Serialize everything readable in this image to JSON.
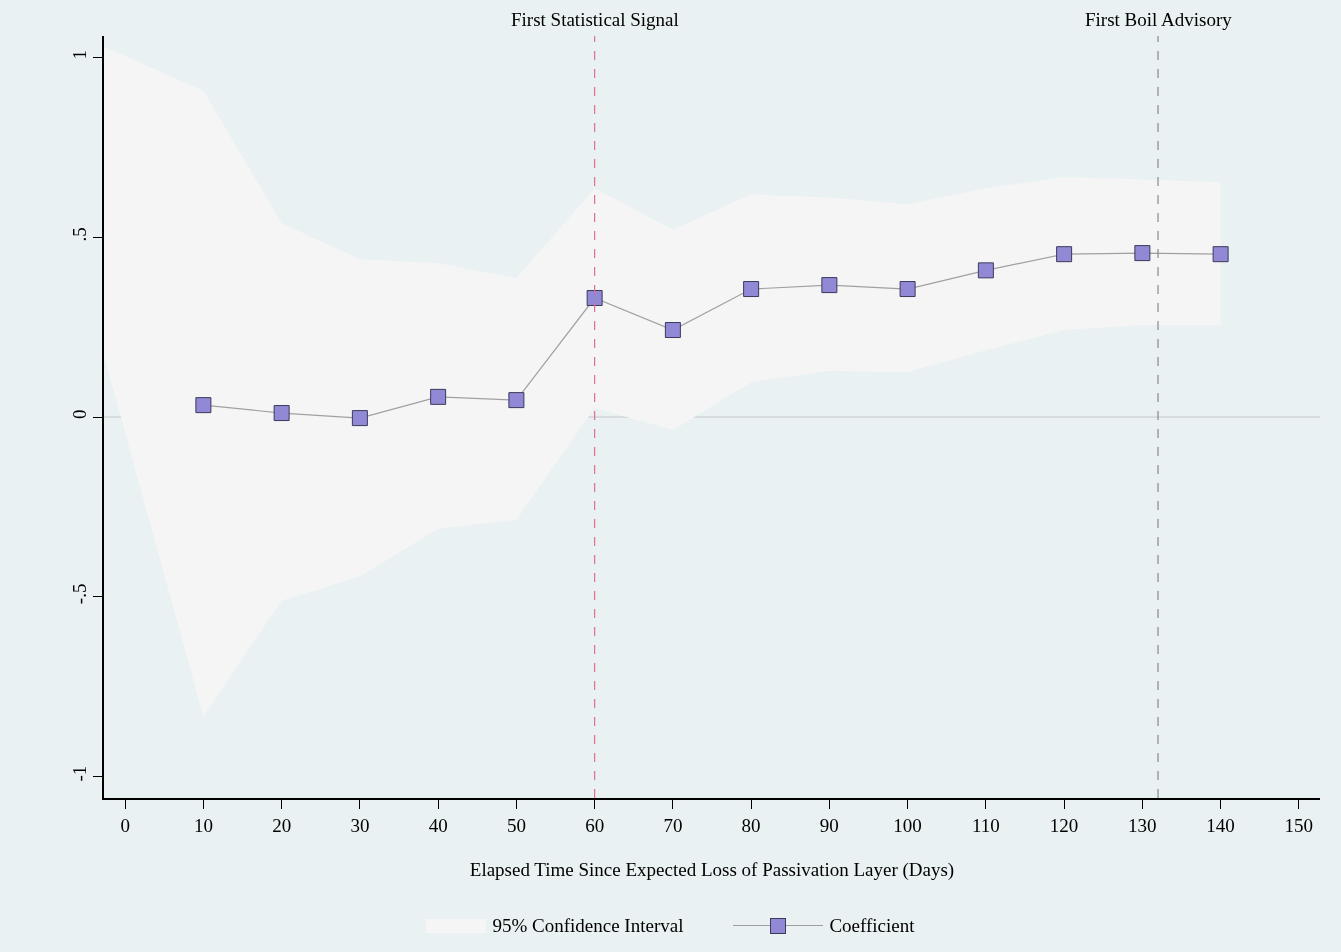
{
  "chart_data": {
    "type": "line",
    "xlabel": "Elapsed Time Since Expected Loss of Passivation Layer (Days)",
    "xlim": [
      -2.7,
      152.7
    ],
    "xticks": [
      0,
      10,
      20,
      30,
      40,
      50,
      60,
      70,
      80,
      90,
      100,
      110,
      120,
      130,
      140,
      150
    ],
    "ylim": [
      -1.06,
      1.06
    ],
    "yticks": [
      {
        "value": -1,
        "label": "-1"
      },
      {
        "value": -0.5,
        "label": "-.5"
      },
      0,
      {
        "value": 0.5,
        "label": ".5"
      },
      1
    ],
    "series": [
      {
        "name": "95% Confidence Interval",
        "type": "area",
        "color": "#f5f5f5",
        "x": [
          -2.7,
          10,
          20,
          30,
          40,
          50,
          60,
          70,
          80,
          90,
          100,
          110,
          120,
          130,
          140
        ],
        "values": [
          null,
          null,
          null,
          null,
          null,
          null,
          null,
          null,
          null,
          null,
          null,
          null,
          null,
          null,
          null
        ],
        "lower": [
          0.17,
          -0.833,
          -0.511,
          -0.444,
          -0.311,
          -0.286,
          0.025,
          -0.036,
          0.097,
          0.128,
          0.125,
          0.186,
          0.242,
          0.256,
          0.256
        ],
        "upper": [
          1.03,
          0.908,
          0.539,
          0.439,
          0.428,
          0.386,
          0.636,
          0.522,
          0.619,
          0.611,
          0.592,
          0.636,
          0.667,
          0.661,
          0.653
        ]
      },
      {
        "name": "Coefficient",
        "type": "line",
        "color": "#9189d6",
        "x": [
          10,
          20,
          30,
          40,
          50,
          60,
          70,
          80,
          90,
          100,
          110,
          120,
          130,
          140
        ],
        "values": [
          0.033,
          0.011,
          -0.003,
          0.056,
          0.047,
          0.331,
          0.242,
          0.356,
          0.367,
          0.356,
          0.408,
          0.453,
          0.456,
          0.453
        ]
      }
    ],
    "ref_lines": [
      {
        "axis": "y",
        "value": 0,
        "color": "#c4c8ca",
        "line_style": "solid"
      },
      {
        "axis": "x",
        "value": 60,
        "label": "First Statistical Signal",
        "color": "#e0708e",
        "line_style": "dashed"
      },
      {
        "axis": "x",
        "value": 132,
        "label": "First Boil Advisory",
        "color": "#8a8a8a",
        "line_style": "dashed"
      }
    ],
    "marker": "square",
    "line_style": "solid",
    "grid": false,
    "legend": "bottom"
  }
}
